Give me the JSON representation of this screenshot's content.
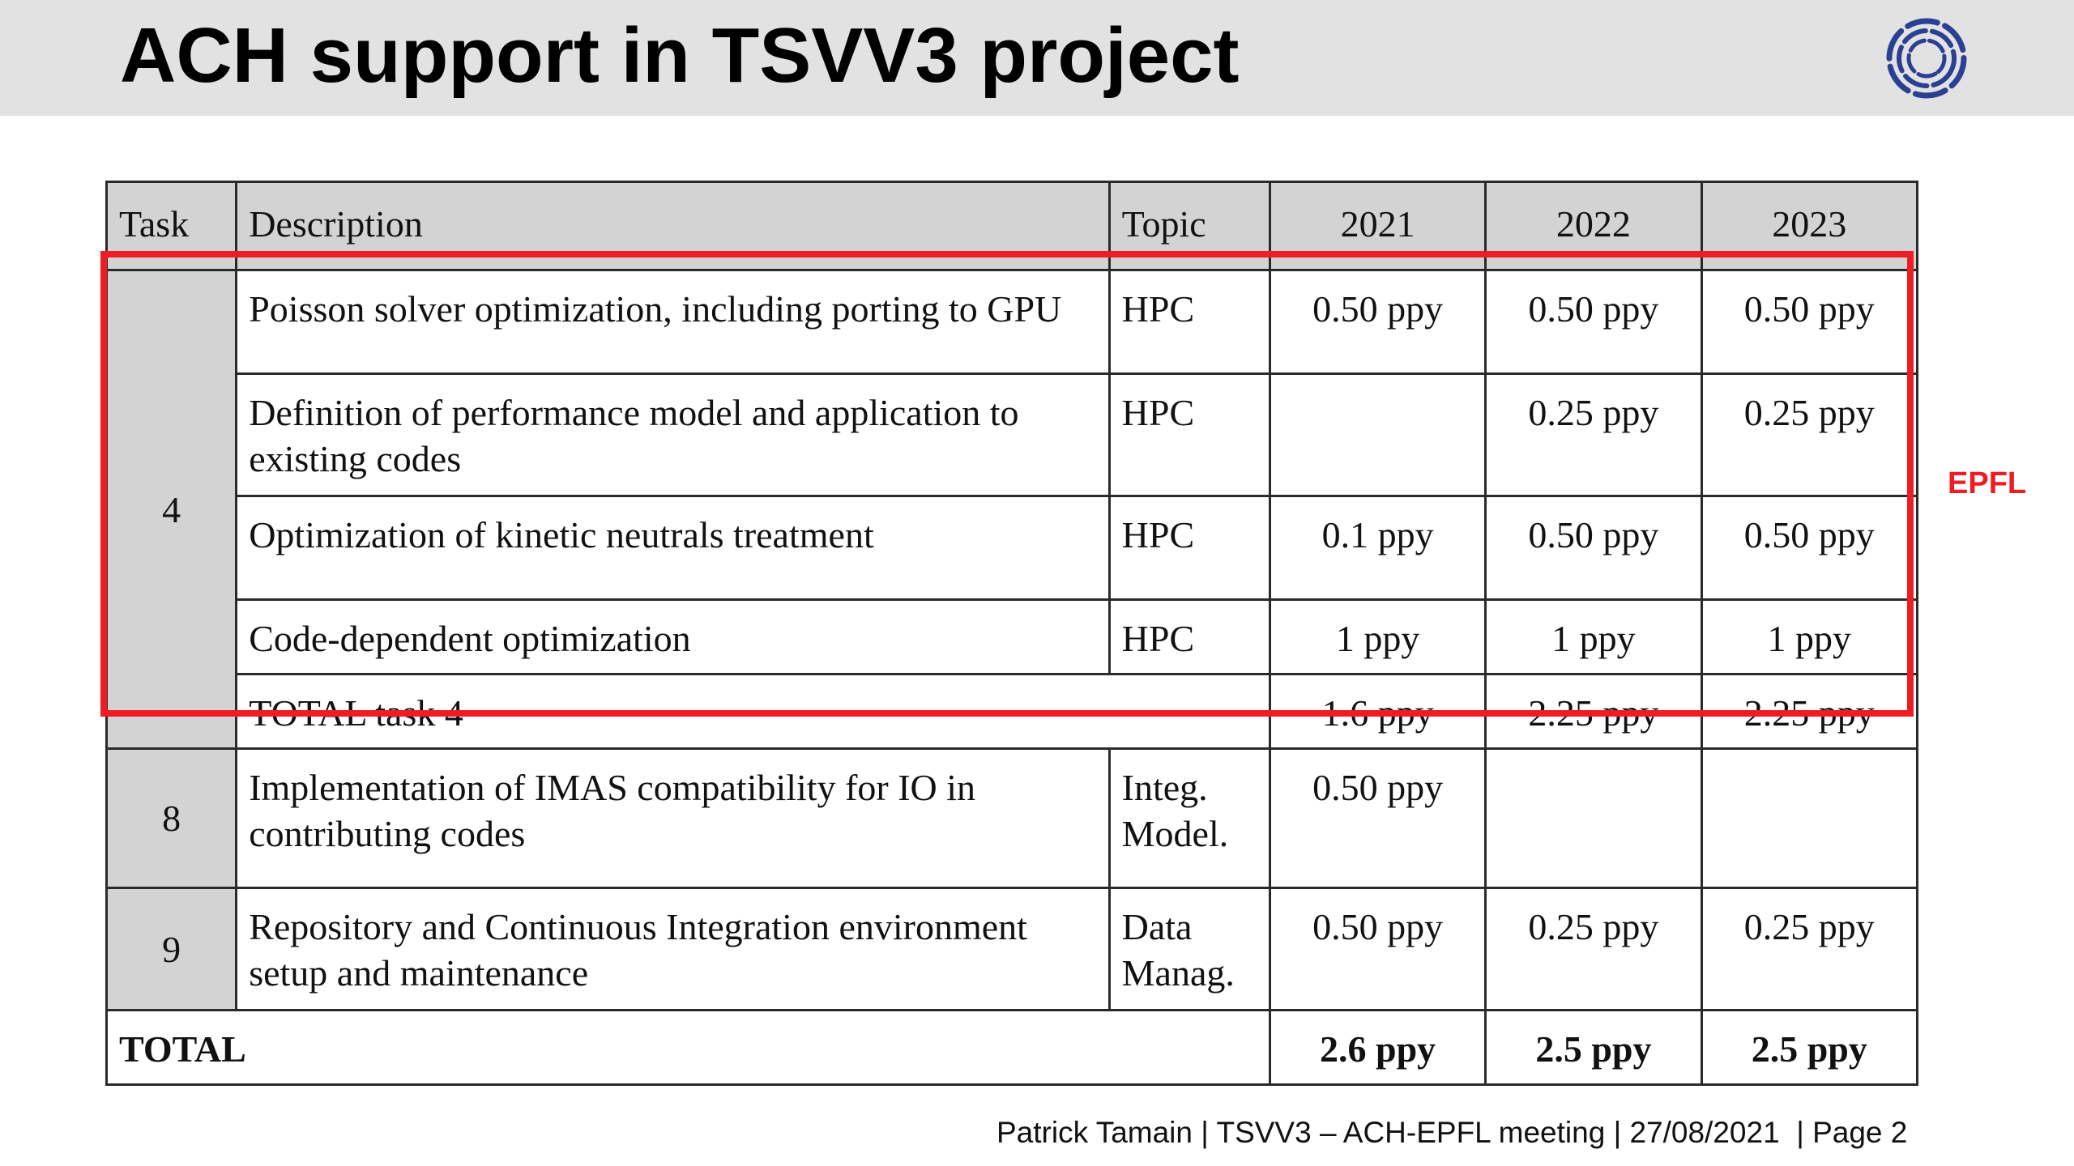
{
  "slide": {
    "title": "ACH support in TSVV3 project",
    "side_label": "EPFL",
    "footer": "Patrick Tamain | TSVV3 – ACH-EPFL meeting | 27/08/2021  | Page 2",
    "highlight_color": "#ee1c23",
    "header_bg": "#d3d3d3",
    "title_bar_bg": "#e2e2e2"
  },
  "table": {
    "headers": {
      "task": "Task",
      "description": "Description",
      "topic": "Topic",
      "y2021": "2021",
      "y2022": "2022",
      "y2023": "2023"
    },
    "task4": {
      "task": "4",
      "rows": [
        {
          "description": "Poisson solver optimization, including porting to GPU",
          "topic": "HPC",
          "y2021": "0.50 ppy",
          "y2022": "0.50 ppy",
          "y2023": "0.50 ppy"
        },
        {
          "description": "Definition of performance model and application to existing codes",
          "topic": "HPC",
          "y2021": "",
          "y2022": "0.25 ppy",
          "y2023": "0.25 ppy"
        },
        {
          "description": "Optimization of kinetic neutrals treatment",
          "topic": "HPC",
          "y2021": "0.1 ppy",
          "y2022": "0.50 ppy",
          "y2023": "0.50 ppy"
        },
        {
          "description": "Code-dependent optimization",
          "topic": "HPC",
          "y2021": "1 ppy",
          "y2022": "1 ppy",
          "y2023": "1 ppy"
        }
      ],
      "total": {
        "label": "TOTAL task 4",
        "y2021": "1.6 ppy",
        "y2022": "2.25 ppy",
        "y2023": "2.25 ppy"
      }
    },
    "task8": {
      "task": "8",
      "description": "Implementation of IMAS compatibility for IO in contributing codes",
      "topic_line1": "Integ.",
      "topic_line2": "Model.",
      "y2021": "0.50 ppy",
      "y2022": "",
      "y2023": ""
    },
    "task9": {
      "task": "9",
      "description": "Repository and Continuous Integration environment setup and maintenance",
      "topic_line1": "Data",
      "topic_line2": "Manag.",
      "y2021": "0.50 ppy",
      "y2022": "0.25 ppy",
      "y2023": "0.25 ppy"
    },
    "total": {
      "label": "TOTAL",
      "y2021": "2.6 ppy",
      "y2022": "2.5 ppy",
      "y2023": "2.5 ppy"
    }
  }
}
